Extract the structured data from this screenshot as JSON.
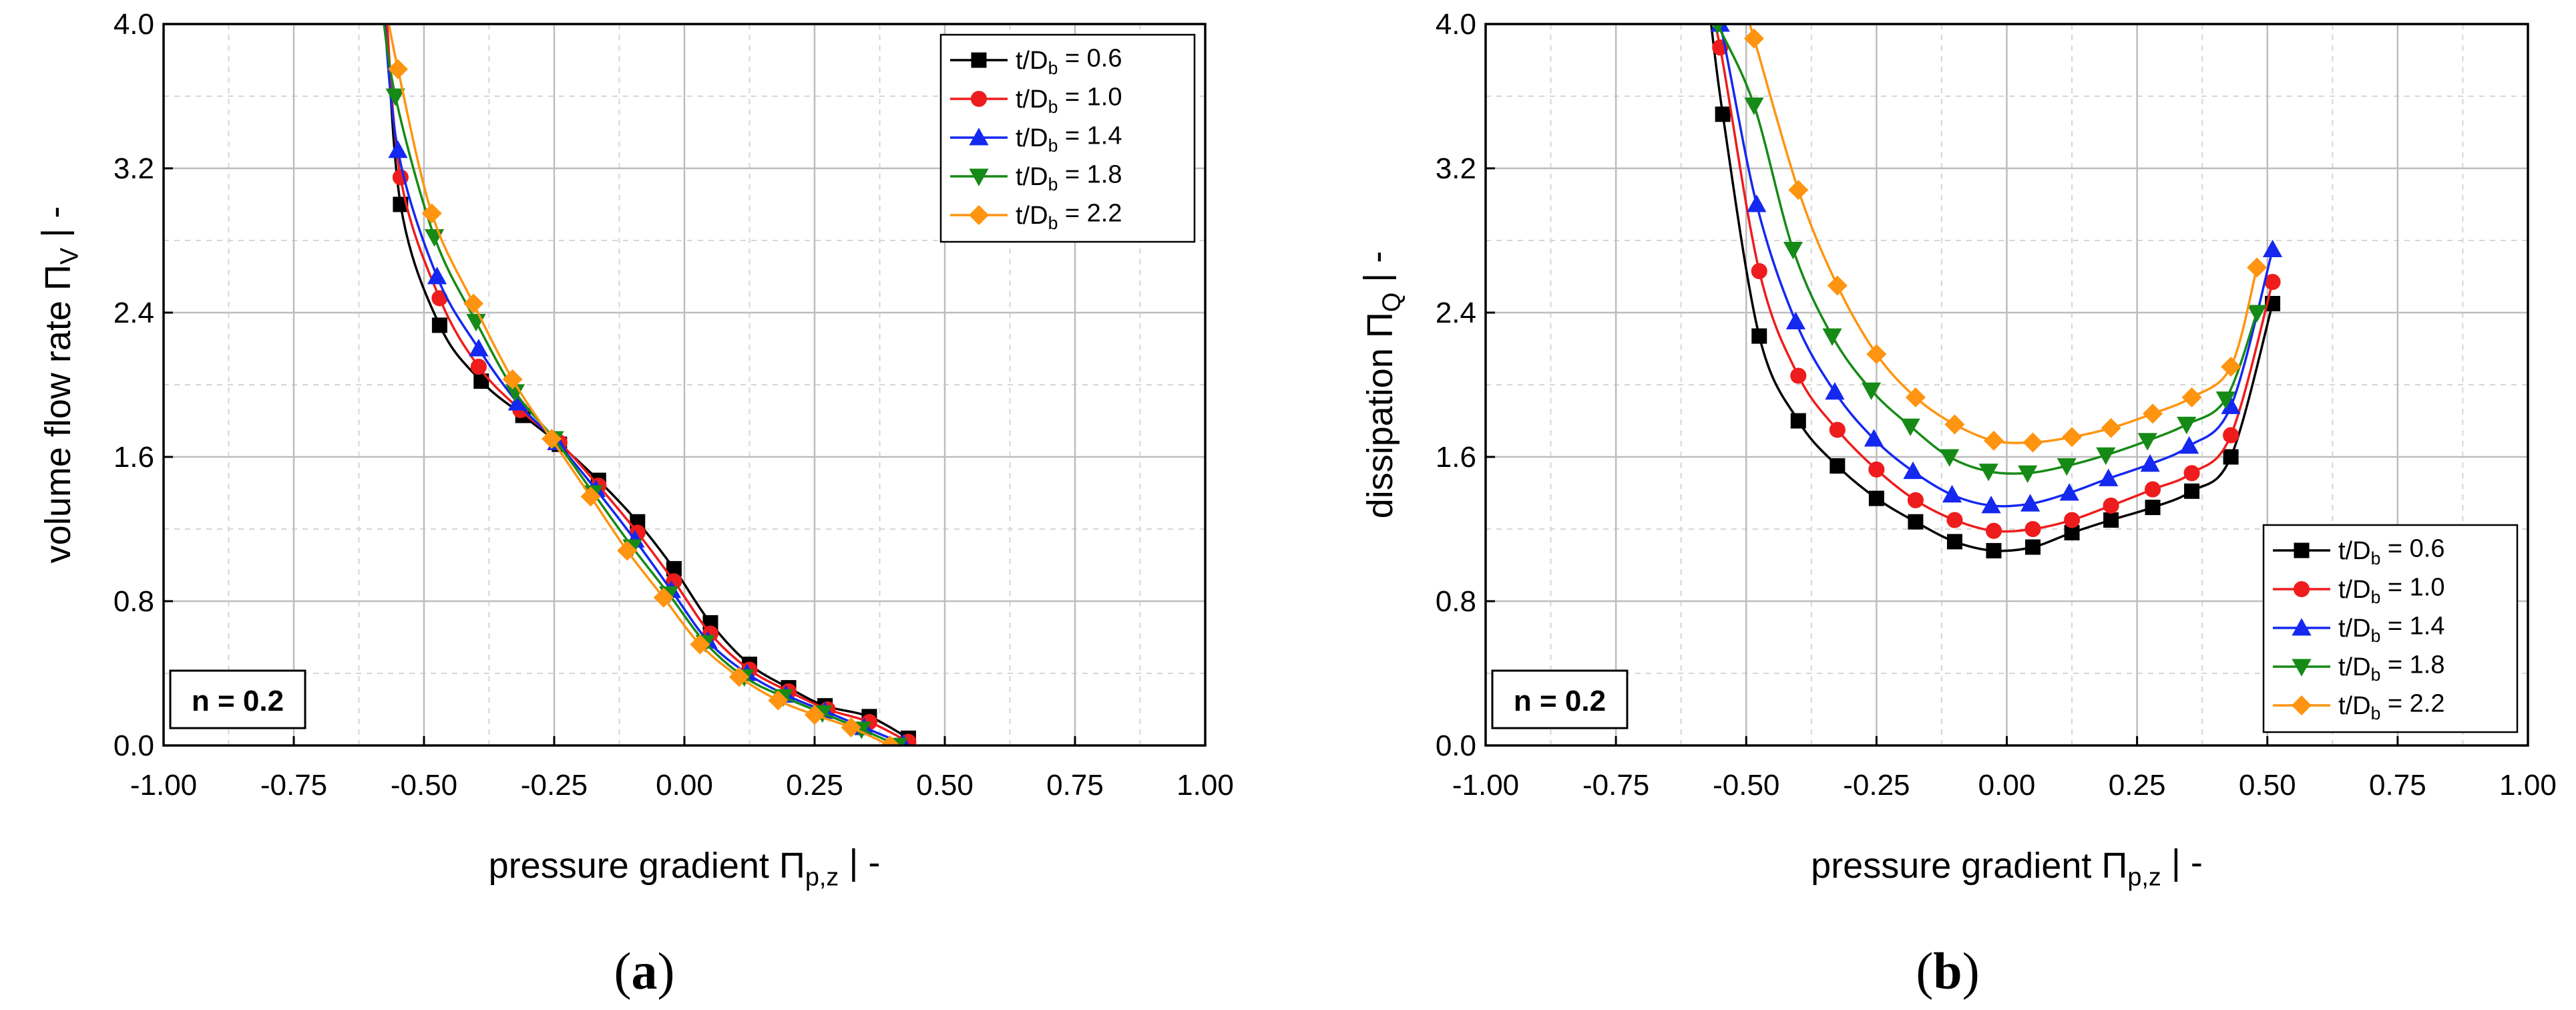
{
  "chart_data": [
    {
      "type": "line",
      "panel_caption": "(a)",
      "caption_letter": "a",
      "xlabel": "pressure gradient Πp,z  |  -",
      "ylabel": "volume flow rate ΠV  |  -",
      "xlabel_parts": {
        "main": "pressure gradient Π",
        "sub": "p,z",
        "tail": "  |  -"
      },
      "ylabel_parts": {
        "main": "volume flow rate Π",
        "sub": "V",
        "tail": "  |  -"
      },
      "xlim": [
        -1.0,
        1.0
      ],
      "ylim": [
        0.0,
        4.0
      ],
      "x_ticks": [
        "-1.00",
        "-0.75",
        "-0.50",
        "-0.25",
        "0.00",
        "0.25",
        "0.50",
        "0.75",
        "1.00"
      ],
      "y_ticks": [
        "0.0",
        "0.8",
        "1.6",
        "2.4",
        "3.2",
        "4.0"
      ],
      "annotation": "n = 0.2",
      "legend_position": "top-right",
      "series": [
        {
          "name": "t/Db = 0.6",
          "label_main": "t/D",
          "label_sub": "b",
          "label_tail": " = 0.6",
          "color": "#000000",
          "marker": "square",
          "x": [
            -0.545,
            -0.47,
            -0.39,
            -0.31,
            -0.24,
            -0.165,
            -0.09,
            -0.02,
            0.05,
            0.125,
            0.2,
            0.27,
            0.355,
            0.43
          ],
          "y": [
            3.0,
            2.33,
            2.02,
            1.83,
            1.67,
            1.47,
            1.24,
            0.98,
            0.68,
            0.45,
            0.32,
            0.22,
            0.16,
            0.04
          ]
        },
        {
          "name": "t/Db = 1.0",
          "label_main": "t/D",
          "label_sub": "b",
          "label_tail": " = 1.0",
          "color": "#ee1c1c",
          "marker": "circle",
          "x": [
            -0.545,
            -0.47,
            -0.395,
            -0.315,
            -0.24,
            -0.165,
            -0.09,
            -0.02,
            0.05,
            0.125,
            0.2,
            0.275,
            0.355,
            0.43
          ],
          "y": [
            3.15,
            2.48,
            2.1,
            1.86,
            1.68,
            1.44,
            1.18,
            0.91,
            0.62,
            0.42,
            0.3,
            0.2,
            0.13,
            0.02
          ]
        },
        {
          "name": "t/Db = 1.4",
          "label_main": "t/D",
          "label_sub": "b",
          "label_tail": " = 1.4",
          "color": "#1428f0",
          "marker": "triangle-up",
          "x": [
            -0.55,
            -0.475,
            -0.395,
            -0.32,
            -0.245,
            -0.17,
            -0.095,
            -0.025,
            0.045,
            0.12,
            0.195,
            0.27,
            0.345,
            0.42
          ],
          "y": [
            3.3,
            2.6,
            2.2,
            1.9,
            1.68,
            1.42,
            1.14,
            0.86,
            0.58,
            0.4,
            0.28,
            0.19,
            0.1,
            0.01
          ]
        },
        {
          "name": "t/Db = 1.8",
          "label_main": "t/D",
          "label_sub": "b",
          "label_tail": " = 1.8",
          "color": "#168a16",
          "marker": "triangle-down",
          "x": [
            -0.555,
            -0.48,
            -0.4,
            -0.325,
            -0.25,
            -0.175,
            -0.1,
            -0.03,
            0.04,
            0.115,
            0.19,
            0.265,
            0.34,
            0.41
          ],
          "y": [
            3.6,
            2.82,
            2.35,
            1.96,
            1.7,
            1.4,
            1.1,
            0.84,
            0.57,
            0.38,
            0.27,
            0.18,
            0.09,
            0.0
          ]
        },
        {
          "name": "t/Db = 2.2",
          "label_main": "t/D",
          "label_sub": "b",
          "label_tail": " = 2.2",
          "color": "#ff9410",
          "marker": "diamond",
          "x": [
            -0.55,
            -0.485,
            -0.405,
            -0.33,
            -0.255,
            -0.18,
            -0.11,
            -0.04,
            0.03,
            0.105,
            0.18,
            0.25,
            0.32,
            0.395
          ],
          "y": [
            3.75,
            2.95,
            2.45,
            2.03,
            1.7,
            1.38,
            1.08,
            0.82,
            0.56,
            0.38,
            0.25,
            0.17,
            0.1,
            0.0
          ]
        }
      ]
    },
    {
      "type": "line",
      "panel_caption": "(b)",
      "caption_letter": "b",
      "xlabel": "pressure gradient Πp,z  |  -",
      "ylabel": "dissipation ΠQ  |  -",
      "xlabel_parts": {
        "main": "pressure gradient Π",
        "sub": "p,z",
        "tail": "  |  -"
      },
      "ylabel_parts": {
        "main": "dissipation Π",
        "sub": "Q",
        "tail": "  |  -"
      },
      "xlim": [
        -1.0,
        1.0
      ],
      "ylim": [
        0.0,
        4.0
      ],
      "x_ticks": [
        "-1.00",
        "-0.75",
        "-0.50",
        "-0.25",
        "0.00",
        "0.25",
        "0.50",
        "0.75",
        "1.00"
      ],
      "y_ticks": [
        "0.0",
        "0.8",
        "1.6",
        "2.4",
        "3.2",
        "4.0"
      ],
      "annotation": "n = 0.2",
      "legend_position": "bottom-right",
      "series": [
        {
          "name": "t/Db = 0.6",
          "label_main": "t/D",
          "label_sub": "b",
          "label_tail": " = 0.6",
          "color": "#000000",
          "marker": "square",
          "x": [
            -0.545,
            -0.475,
            -0.4,
            -0.325,
            -0.25,
            -0.175,
            -0.1,
            -0.025,
            0.05,
            0.125,
            0.2,
            0.28,
            0.355,
            0.43,
            0.51
          ],
          "y": [
            3.5,
            2.27,
            1.8,
            1.55,
            1.37,
            1.24,
            1.13,
            1.08,
            1.1,
            1.18,
            1.25,
            1.32,
            1.41,
            1.6,
            2.45
          ]
        },
        {
          "name": "t/Db = 1.0",
          "label_main": "t/D",
          "label_sub": "b",
          "label_tail": " = 1.0",
          "color": "#ee1c1c",
          "marker": "circle",
          "x": [
            -0.55,
            -0.475,
            -0.4,
            -0.325,
            -0.25,
            -0.175,
            -0.1,
            -0.025,
            0.05,
            0.125,
            0.2,
            0.28,
            0.355,
            0.43,
            0.51
          ],
          "y": [
            3.87,
            2.63,
            2.05,
            1.75,
            1.53,
            1.36,
            1.25,
            1.19,
            1.2,
            1.25,
            1.33,
            1.42,
            1.51,
            1.72,
            2.57
          ]
        },
        {
          "name": "t/Db = 1.4",
          "label_main": "t/D",
          "label_sub": "b",
          "label_tail": " = 1.4",
          "color": "#1428f0",
          "marker": "triangle-up",
          "x": [
            -0.55,
            -0.48,
            -0.405,
            -0.33,
            -0.255,
            -0.18,
            -0.105,
            -0.03,
            0.045,
            0.12,
            0.195,
            0.275,
            0.35,
            0.43,
            0.51
          ],
          "y": [
            4.0,
            3.0,
            2.35,
            1.96,
            1.7,
            1.52,
            1.39,
            1.33,
            1.34,
            1.4,
            1.48,
            1.56,
            1.66,
            1.88,
            2.75
          ]
        },
        {
          "name": "t/Db = 1.8",
          "label_main": "t/D",
          "label_sub": "b",
          "label_tail": " = 1.8",
          "color": "#168a16",
          "marker": "triangle-down",
          "x": [
            -0.555,
            -0.485,
            -0.41,
            -0.335,
            -0.26,
            -0.185,
            -0.11,
            -0.035,
            0.04,
            0.115,
            0.19,
            0.27,
            0.345,
            0.42,
            0.48
          ],
          "y": [
            4.0,
            3.55,
            2.75,
            2.27,
            1.97,
            1.77,
            1.6,
            1.52,
            1.51,
            1.55,
            1.61,
            1.69,
            1.78,
            1.92,
            2.4
          ]
        },
        {
          "name": "t/Db = 2.2",
          "label_main": "t/D",
          "label_sub": "b",
          "label_tail": " = 2.2",
          "color": "#ff9410",
          "marker": "diamond",
          "x": [
            -0.485,
            -0.4,
            -0.325,
            -0.25,
            -0.175,
            -0.1,
            -0.025,
            0.05,
            0.125,
            0.2,
            0.28,
            0.355,
            0.43,
            0.48
          ],
          "y": [
            3.92,
            3.08,
            2.55,
            2.17,
            1.93,
            1.78,
            1.69,
            1.68,
            1.71,
            1.76,
            1.84,
            1.93,
            2.1,
            2.65
          ]
        }
      ]
    }
  ]
}
